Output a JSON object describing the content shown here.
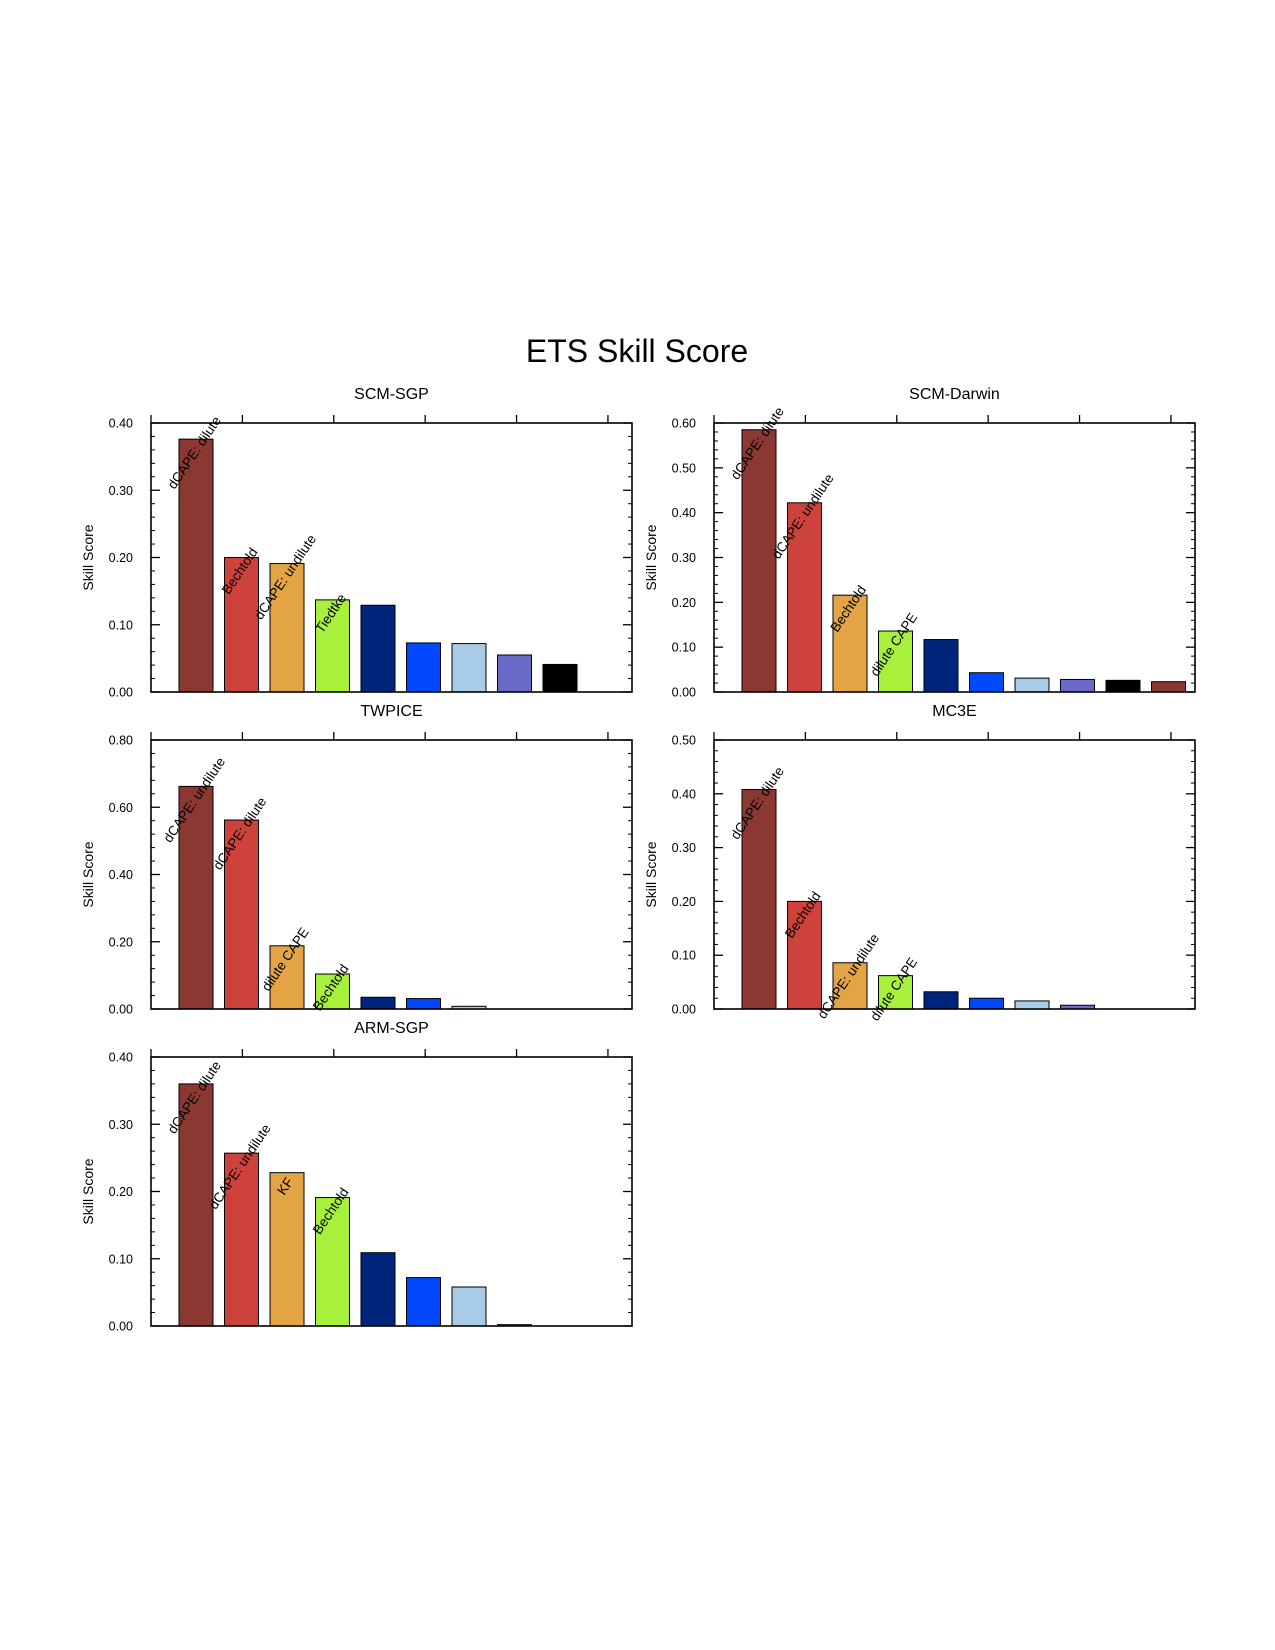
{
  "figure": {
    "title": "ETS Skill Score"
  },
  "colors": [
    "#8b3833",
    "#cd423a",
    "#e2a444",
    "#a7f13c",
    "#00267c",
    "#0049ff",
    "#a8cbe8",
    "#6a6bc8",
    "#000000",
    "#8b3833"
  ],
  "chart_data": [
    {
      "type": "bar",
      "title": "SCM-SGP",
      "ylabel": "Skill Score",
      "ylim": [
        0,
        0.4
      ],
      "yticks": [
        "0.00",
        "0.10",
        "0.20",
        "0.30",
        "0.40"
      ],
      "values": [
        0.376,
        0.2,
        0.191,
        0.137,
        0.129,
        0.073,
        0.072,
        0.055,
        0.041
      ],
      "bar_labels": [
        "dCAPE: dilute",
        "Bechtold",
        "dCAPE: undilute",
        "Tiedtke",
        "",
        "",
        "",
        "",
        ""
      ]
    },
    {
      "type": "bar",
      "title": "SCM-Darwin",
      "ylabel": "Skill Score",
      "ylim": [
        0,
        0.6
      ],
      "yticks": [
        "0.00",
        "0.10",
        "0.20",
        "0.30",
        "0.40",
        "0.50",
        "0.60"
      ],
      "values": [
        0.585,
        0.422,
        0.216,
        0.136,
        0.117,
        0.043,
        0.031,
        0.028,
        0.026,
        0.023
      ],
      "bar_labels": [
        "dCAPE: dilute",
        "dCAPE: undilute",
        "Bechtold",
        "dilute CAPE",
        "",
        "",
        "",
        "",
        "",
        ""
      ]
    },
    {
      "type": "bar",
      "title": "TWPICE",
      "ylabel": "Skill Score",
      "ylim": [
        0,
        0.8
      ],
      "yticks": [
        "0.00",
        "0.20",
        "0.40",
        "0.60",
        "0.80"
      ],
      "values": [
        0.662,
        0.562,
        0.188,
        0.104,
        0.035,
        0.031,
        0.008,
        0.0,
        0.0
      ],
      "bar_labels": [
        "dCAPE: undilute",
        "dCAPE: dilute",
        "dilute CAPE",
        "Bechtold",
        "",
        "",
        "",
        "",
        ""
      ]
    },
    {
      "type": "bar",
      "title": "MC3E",
      "ylabel": "Skill Score",
      "ylim": [
        0,
        0.5
      ],
      "yticks": [
        "0.00",
        "0.10",
        "0.20",
        "0.30",
        "0.40",
        "0.50"
      ],
      "values": [
        0.408,
        0.2,
        0.086,
        0.062,
        0.032,
        0.02,
        0.015,
        0.007,
        0.0,
        0.0
      ],
      "bar_labels": [
        "dCAPE: dilute",
        "Bechtold",
        "dCAPE: undilute",
        "dilute CAPE",
        "",
        "",
        "",
        "",
        "",
        ""
      ]
    },
    {
      "type": "bar",
      "title": "ARM-SGP",
      "ylabel": "Skill Score",
      "ylim": [
        0,
        0.4
      ],
      "yticks": [
        "0.00",
        "0.10",
        "0.20",
        "0.30",
        "0.40"
      ],
      "values": [
        0.36,
        0.257,
        0.228,
        0.191,
        0.109,
        0.072,
        0.058,
        0.002,
        0.0
      ],
      "bar_labels": [
        "dCAPE: dilute",
        "dCAPE: undilute",
        "KF",
        "Bechtold",
        "",
        "",
        "",
        "",
        ""
      ]
    }
  ]
}
